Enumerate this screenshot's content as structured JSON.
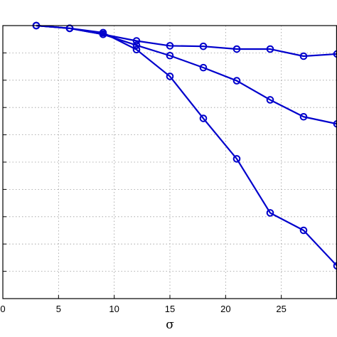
{
  "chart_data": {
    "type": "line",
    "xlabel": "σ",
    "ylabel": "",
    "title": "",
    "xlim": [
      0,
      30
    ],
    "x_ticks": [
      0,
      5,
      10,
      15,
      20,
      25
    ],
    "x_tick_labels": [
      "0",
      "5",
      "10",
      "15",
      "20",
      "25"
    ],
    "y_tick_count": 10,
    "grid": true,
    "legend": "none",
    "line_color": "#0000cc",
    "marker": "open-circle",
    "series": [
      {
        "x": [
          3,
          6,
          9,
          12,
          15,
          18,
          21,
          24,
          27,
          30
        ],
        "y": [
          1.0,
          0.995,
          0.984,
          0.972,
          0.963,
          0.962,
          0.957,
          0.957,
          0.944,
          0.948
        ]
      },
      {
        "x": [
          3,
          6,
          9,
          12,
          15,
          18,
          21,
          24,
          27,
          30
        ],
        "y": [
          1.0,
          0.995,
          0.984,
          0.964,
          0.945,
          0.923,
          0.899,
          0.864,
          0.833,
          0.82
        ]
      },
      {
        "x": [
          3,
          6,
          9,
          12,
          15,
          18,
          21,
          24,
          27,
          30
        ],
        "y": [
          1.0,
          0.995,
          0.987,
          0.956,
          0.907,
          0.83,
          0.756,
          0.657,
          0.625,
          0.56
        ]
      }
    ]
  }
}
